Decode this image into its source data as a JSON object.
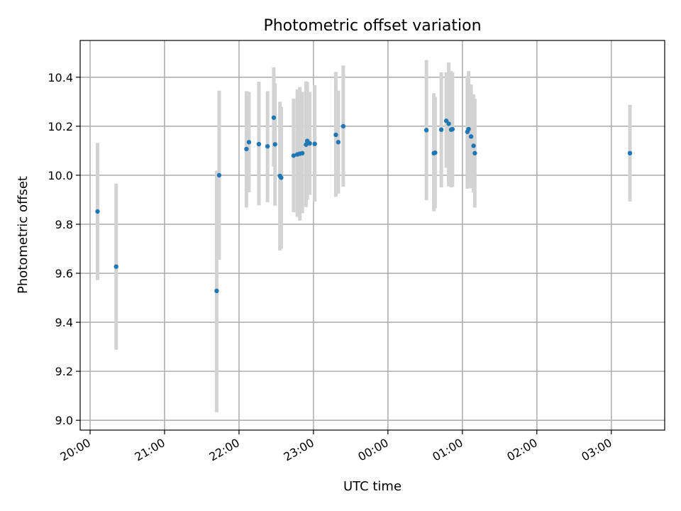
{
  "chart_data": {
    "type": "scatter",
    "title": "Photometric offset variation",
    "xlabel": "UTC time",
    "ylabel": "Photometric offset",
    "x_start": "20:00",
    "xlim": [
      "19:52",
      "03:43"
    ],
    "ylim": [
      8.96,
      10.55
    ],
    "grid": true,
    "x_ticks": [
      "20:00",
      "21:00",
      "22:00",
      "23:00",
      "00:00",
      "01:00",
      "02:00",
      "03:00"
    ],
    "y_ticks": [
      9.0,
      9.2,
      9.4,
      9.6,
      9.8,
      10.0,
      10.2,
      10.4
    ],
    "y_tick_labels": [
      "9.0",
      "9.2",
      "9.4",
      "9.6",
      "9.8",
      "10.0",
      "10.2",
      "10.4"
    ],
    "marker_color": "#1f77b4",
    "errorbar_color": "#d3d3d3",
    "points": [
      {
        "x": "20:06",
        "y": 9.852,
        "lo": 9.572,
        "hi": 10.132
      },
      {
        "x": "20:21",
        "y": 9.627,
        "lo": 9.288,
        "hi": 9.966
      },
      {
        "x": "21:42",
        "y": 9.528,
        "lo": 9.033,
        "hi": 10.019
      },
      {
        "x": "21:44",
        "y": 10.0,
        "lo": 9.655,
        "hi": 10.345
      },
      {
        "x": "22:06",
        "y": 10.107,
        "lo": 9.868,
        "hi": 10.343
      },
      {
        "x": "22:08",
        "y": 10.135,
        "lo": 9.93,
        "hi": 10.34
      },
      {
        "x": "22:16",
        "y": 10.127,
        "lo": 9.877,
        "hi": 10.382
      },
      {
        "x": "22:23",
        "y": 10.118,
        "lo": 9.89,
        "hi": 10.343
      },
      {
        "x": "22:28",
        "y": 10.235,
        "lo": 10.035,
        "hi": 10.44
      },
      {
        "x": "22:29",
        "y": 10.126,
        "lo": 9.876,
        "hi": 10.375
      },
      {
        "x": "22:33",
        "y": 9.997,
        "lo": 9.693,
        "hi": 10.3
      },
      {
        "x": "22:34",
        "y": 9.99,
        "lo": 9.7,
        "hi": 10.278
      },
      {
        "x": "22:44",
        "y": 10.08,
        "lo": 9.849,
        "hi": 10.313
      },
      {
        "x": "22:47",
        "y": 10.085,
        "lo": 9.83,
        "hi": 10.35
      },
      {
        "x": "22:49",
        "y": 10.088,
        "lo": 9.815,
        "hi": 10.36
      },
      {
        "x": "22:51",
        "y": 10.09,
        "lo": 9.845,
        "hi": 10.34
      },
      {
        "x": "22:54",
        "y": 10.125,
        "lo": 9.87,
        "hi": 10.383
      },
      {
        "x": "22:55",
        "y": 10.14,
        "lo": 9.9,
        "hi": 10.38
      },
      {
        "x": "22:57",
        "y": 10.13,
        "lo": 9.92,
        "hi": 10.34
      },
      {
        "x": "23:01",
        "y": 10.128,
        "lo": 9.893,
        "hi": 10.368
      },
      {
        "x": "23:18",
        "y": 10.165,
        "lo": 9.912,
        "hi": 10.422
      },
      {
        "x": "23:20",
        "y": 10.135,
        "lo": 9.925,
        "hi": 10.345
      },
      {
        "x": "23:24",
        "y": 10.2,
        "lo": 9.953,
        "hi": 10.448
      },
      {
        "x": "00:31",
        "y": 10.184,
        "lo": 9.898,
        "hi": 10.47
      },
      {
        "x": "00:37",
        "y": 10.09,
        "lo": 9.853,
        "hi": 10.335
      },
      {
        "x": "00:38",
        "y": 10.092,
        "lo": 9.865,
        "hi": 10.32
      },
      {
        "x": "00:43",
        "y": 10.186,
        "lo": 9.95,
        "hi": 10.42
      },
      {
        "x": "00:47",
        "y": 10.222,
        "lo": 10.03,
        "hi": 10.42
      },
      {
        "x": "00:49",
        "y": 10.21,
        "lo": 9.955,
        "hi": 10.46
      },
      {
        "x": "00:51",
        "y": 10.186,
        "lo": 9.95,
        "hi": 10.425
      },
      {
        "x": "00:52",
        "y": 10.188,
        "lo": 9.953,
        "hi": 10.42
      },
      {
        "x": "01:04",
        "y": 10.177,
        "lo": 9.945,
        "hi": 10.405
      },
      {
        "x": "01:05",
        "y": 10.188,
        "lo": 9.953,
        "hi": 10.425
      },
      {
        "x": "01:07",
        "y": 10.158,
        "lo": 9.947,
        "hi": 10.37
      },
      {
        "x": "01:09",
        "y": 10.12,
        "lo": 9.93,
        "hi": 10.33
      },
      {
        "x": "01:10",
        "y": 10.09,
        "lo": 9.868,
        "hi": 10.312
      },
      {
        "x": "03:15",
        "y": 10.09,
        "lo": 9.893,
        "hi": 10.287
      }
    ]
  }
}
